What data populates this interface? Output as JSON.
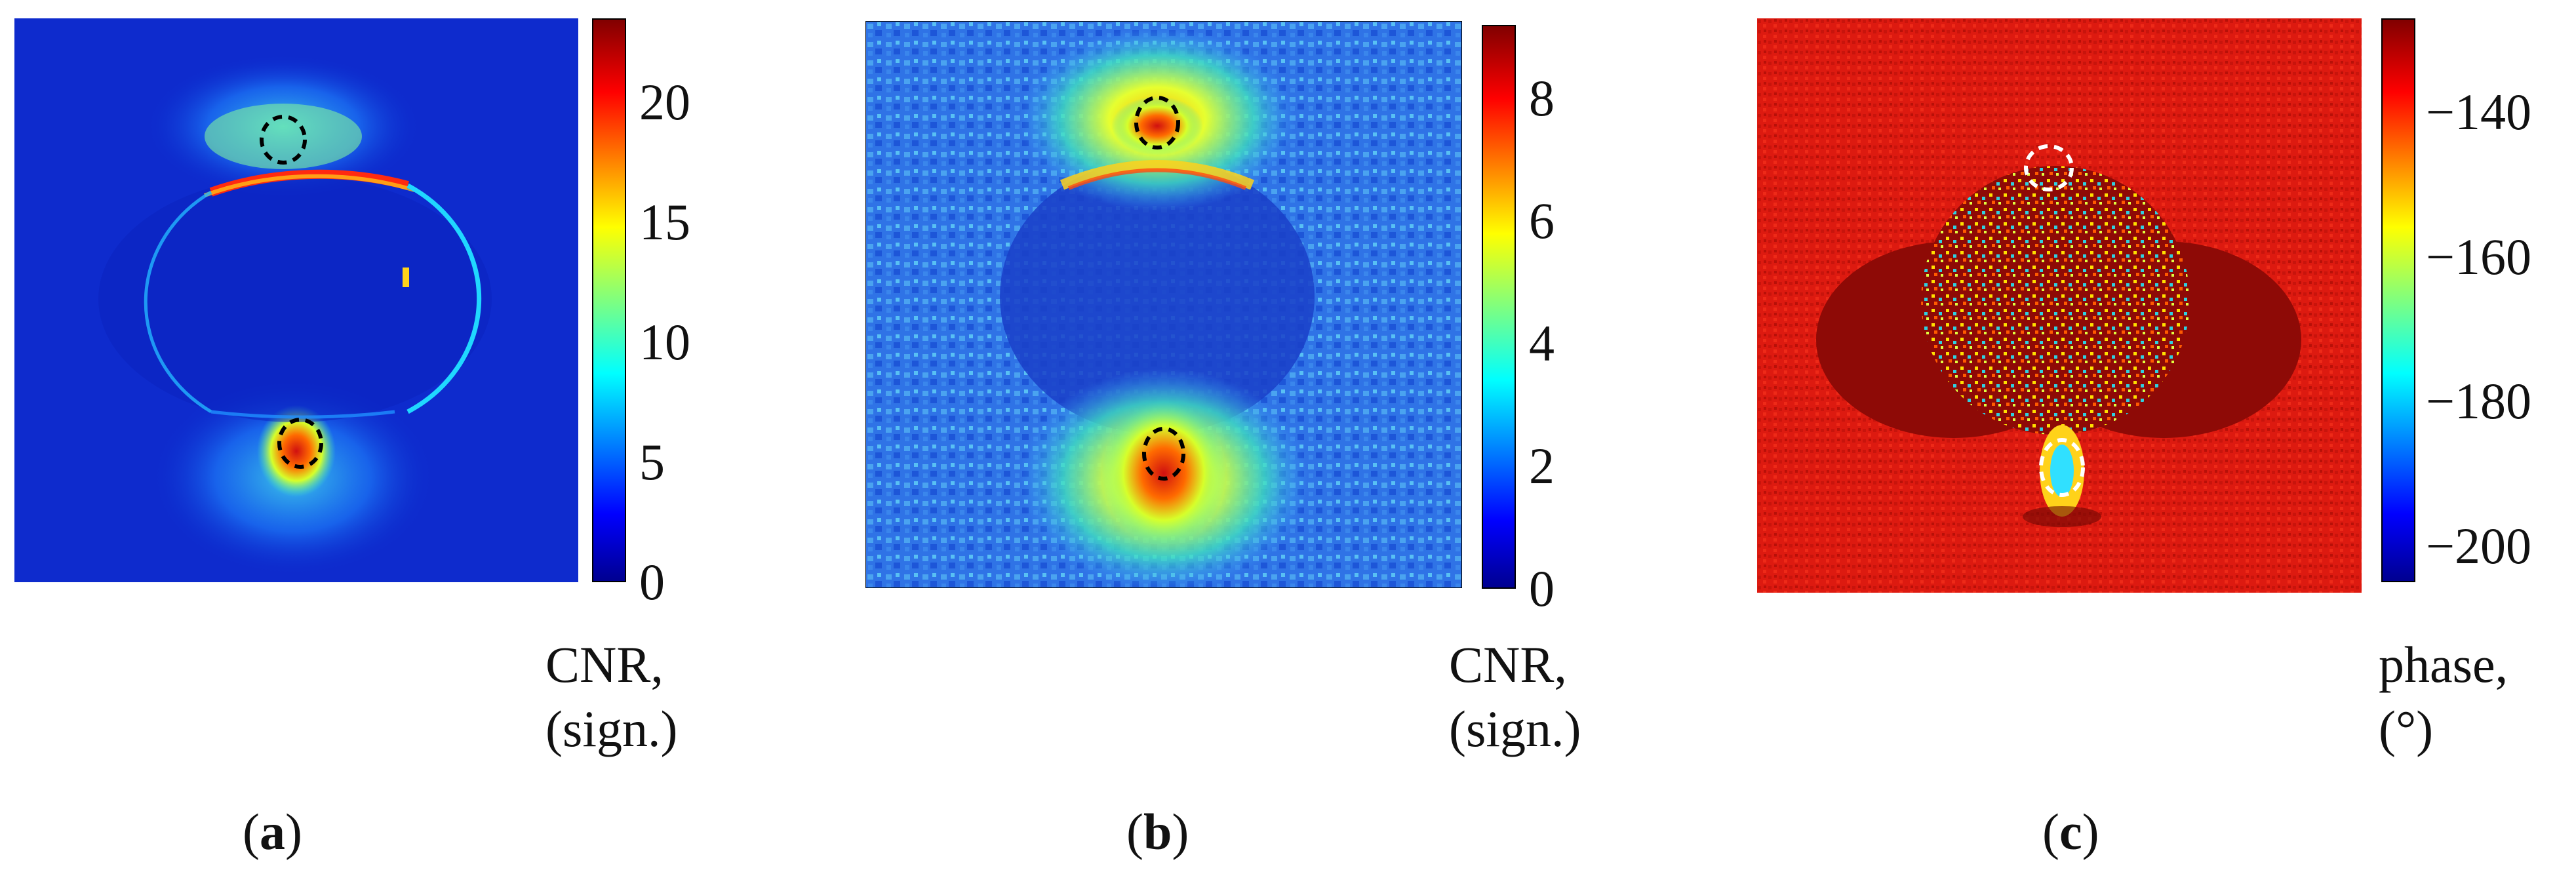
{
  "panels": [
    {
      "id": "a",
      "label": "a",
      "colorbar": {
        "ticks": [
          "0",
          "5",
          "10",
          "15",
          "20"
        ],
        "title_line1": "CNR,",
        "title_line2": "(sign.)",
        "colormap": "jet",
        "range": [
          0,
          23.5
        ]
      }
    },
    {
      "id": "b",
      "label": "b",
      "colorbar": {
        "ticks": [
          "0",
          "2",
          "4",
          "6",
          "8"
        ],
        "title_line1": "CNR,",
        "title_line2": "(sign.)",
        "colormap": "jet",
        "range": [
          0,
          9.2
        ]
      }
    },
    {
      "id": "c",
      "label": "c",
      "colorbar": {
        "ticks": [
          "−140",
          "−160",
          "−180",
          "−200"
        ],
        "title_line1": "phase,",
        "title_line2": "(°)",
        "colormap": "jet",
        "range": [
          -205,
          -127
        ]
      }
    }
  ],
  "colors": {
    "jet_dark_blue": "#00008f",
    "jet_blue": "#0000ff",
    "jet_cyan": "#00ffff",
    "jet_yellow": "#ffff00",
    "jet_red": "#ff0000",
    "jet_dark_red": "#800000",
    "phase_background": "#dd1a10",
    "phase_dark_region": "#8e0a06",
    "marker_black": "#000000",
    "marker_white": "#ffffff"
  }
}
